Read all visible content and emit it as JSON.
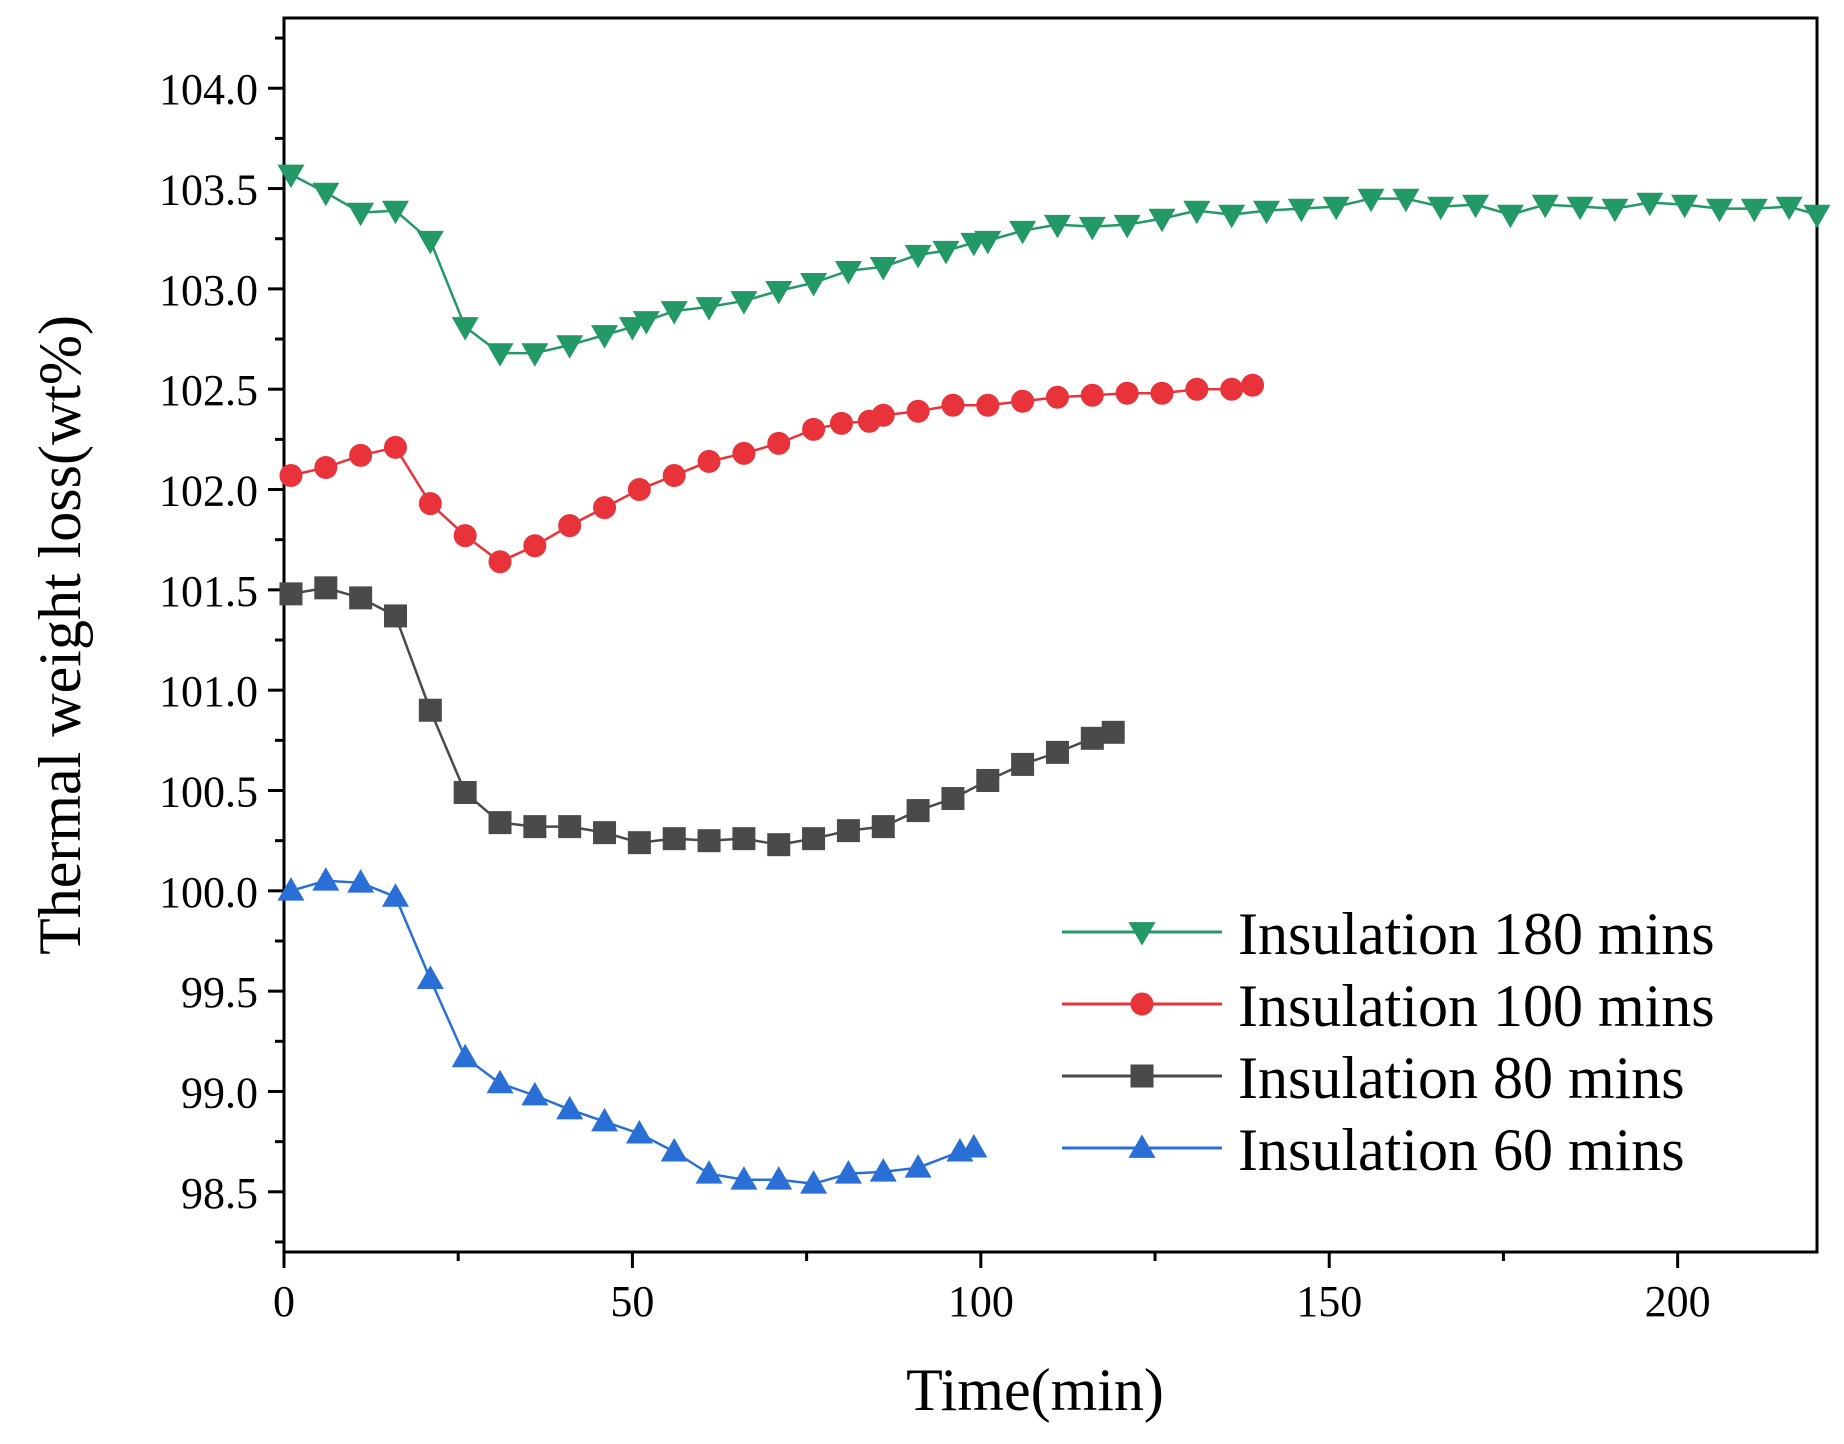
{
  "chart_data": {
    "type": "line",
    "title": "",
    "xlabel": "Time(min)",
    "ylabel": "Thermal weight loss(wt%)",
    "xlim": [
      0,
      220
    ],
    "ylim": [
      98.2,
      104.35
    ],
    "xticks": [
      0,
      50,
      100,
      150,
      200
    ],
    "xtick_labels": [
      "0",
      "50",
      "100",
      "150",
      "200"
    ],
    "yticks": [
      98.5,
      99.0,
      99.5,
      100.0,
      100.5,
      101.0,
      101.5,
      102.0,
      102.5,
      103.0,
      103.5,
      104.0
    ],
    "ytick_labels": [
      "98.5",
      "99.0",
      "99.5",
      "100.0",
      "100.5",
      "101.0",
      "101.5",
      "102.0",
      "102.5",
      "103.0",
      "103.5",
      "104.0"
    ],
    "grid": false,
    "legend_position": "bottom-right",
    "series": [
      {
        "name": "Insulation 180 mins",
        "color": "#229966",
        "marker": "triangle-down",
        "x": [
          1,
          6,
          11,
          16,
          21,
          26,
          31,
          36,
          41,
          46,
          50,
          52,
          56,
          61,
          66,
          71,
          76,
          81,
          86,
          91,
          95,
          99,
          101,
          106,
          111,
          116,
          121,
          126,
          131,
          136,
          141,
          146,
          151,
          156,
          161,
          166,
          171,
          176,
          181,
          186,
          191,
          196,
          201,
          206,
          211,
          216,
          220
        ],
        "y": [
          103.57,
          103.48,
          103.38,
          103.39,
          103.24,
          102.81,
          102.68,
          102.68,
          102.72,
          102.77,
          102.81,
          102.84,
          102.89,
          102.91,
          102.94,
          102.99,
          103.03,
          103.09,
          103.11,
          103.17,
          103.19,
          103.23,
          103.24,
          103.29,
          103.32,
          103.31,
          103.32,
          103.35,
          103.39,
          103.37,
          103.39,
          103.4,
          103.41,
          103.45,
          103.45,
          103.41,
          103.42,
          103.37,
          103.42,
          103.41,
          103.4,
          103.43,
          103.42,
          103.4,
          103.4,
          103.41,
          103.37
        ]
      },
      {
        "name": "Insulation 100 mins",
        "color": "#e8333a",
        "marker": "circle",
        "x": [
          1,
          6,
          11,
          16,
          21,
          26,
          31,
          36,
          41,
          46,
          51,
          56,
          61,
          66,
          71,
          76,
          80,
          84,
          86,
          91,
          96,
          101,
          106,
          111,
          116,
          121,
          126,
          131,
          136,
          139
        ],
        "y": [
          102.07,
          102.11,
          102.17,
          102.21,
          101.93,
          101.77,
          101.64,
          101.72,
          101.82,
          101.91,
          102.0,
          102.07,
          102.14,
          102.18,
          102.23,
          102.3,
          102.33,
          102.34,
          102.37,
          102.39,
          102.42,
          102.42,
          102.44,
          102.46,
          102.47,
          102.48,
          102.48,
          102.5,
          102.5,
          102.52
        ]
      },
      {
        "name": "Insulation 80 mins",
        "color": "#4a4a4a",
        "marker": "square",
        "x": [
          1,
          6,
          11,
          16,
          21,
          26,
          31,
          36,
          41,
          46,
          51,
          56,
          61,
          66,
          71,
          76,
          81,
          86,
          91,
          96,
          101,
          106,
          111,
          116,
          119
        ],
        "y": [
          101.48,
          101.51,
          101.46,
          101.37,
          100.9,
          100.49,
          100.34,
          100.32,
          100.32,
          100.29,
          100.24,
          100.26,
          100.25,
          100.26,
          100.23,
          100.26,
          100.3,
          100.32,
          100.4,
          100.46,
          100.55,
          100.63,
          100.69,
          100.76,
          100.79
        ]
      },
      {
        "name": "Insulation 60 mins",
        "color": "#2a6fd6",
        "marker": "triangle-up",
        "x": [
          1,
          6,
          11,
          16,
          21,
          26,
          31,
          36,
          41,
          46,
          51,
          56,
          61,
          66,
          71,
          76,
          81,
          86,
          91,
          97,
          99
        ],
        "y": [
          100.0,
          100.05,
          100.04,
          99.97,
          99.56,
          99.17,
          99.04,
          98.98,
          98.91,
          98.85,
          98.79,
          98.7,
          98.59,
          98.56,
          98.56,
          98.54,
          98.59,
          98.6,
          98.62,
          98.7,
          98.72
        ]
      }
    ]
  }
}
